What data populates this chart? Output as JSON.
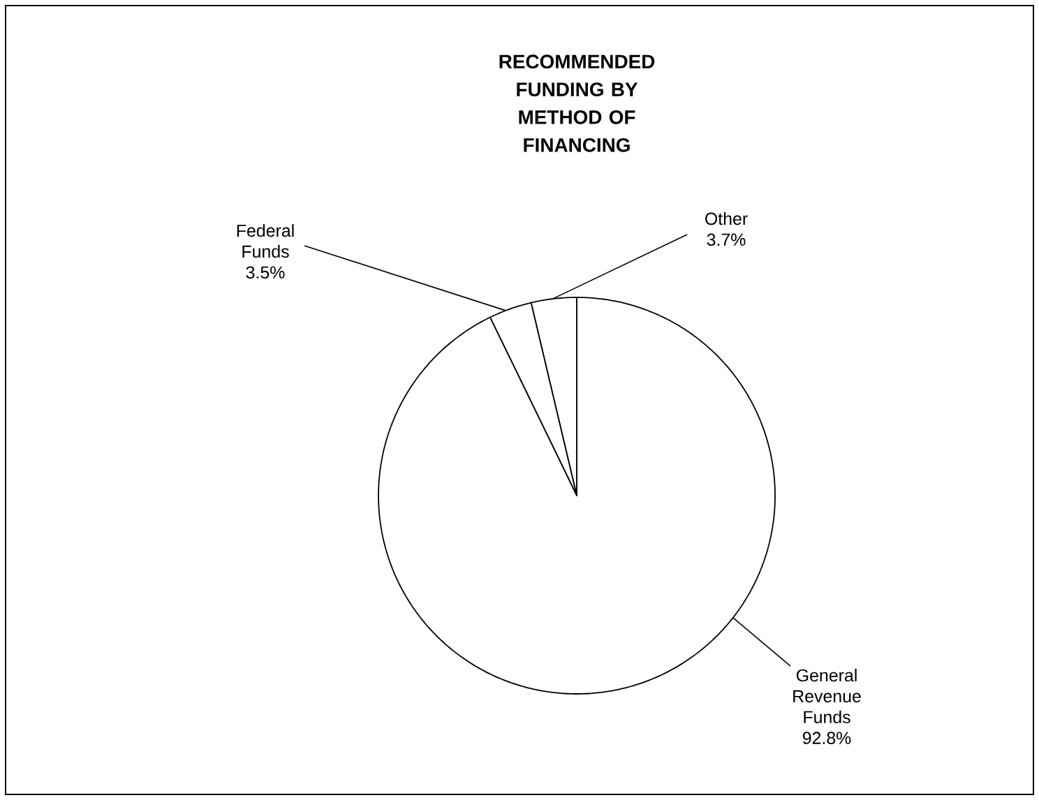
{
  "chart_data": {
    "type": "pie",
    "title": "RECOMMENDED FUNDING BY METHOD OF FINANCING",
    "categories": [
      "Other",
      "Federal Funds",
      "General Revenue Funds"
    ],
    "values": [
      3.7,
      3.5,
      92.8
    ],
    "colors": [
      "#ffffff",
      "#ffffff",
      "#ffffff"
    ],
    "value_labels": [
      "3.7%",
      "3.5%",
      "92.8%"
    ]
  }
}
